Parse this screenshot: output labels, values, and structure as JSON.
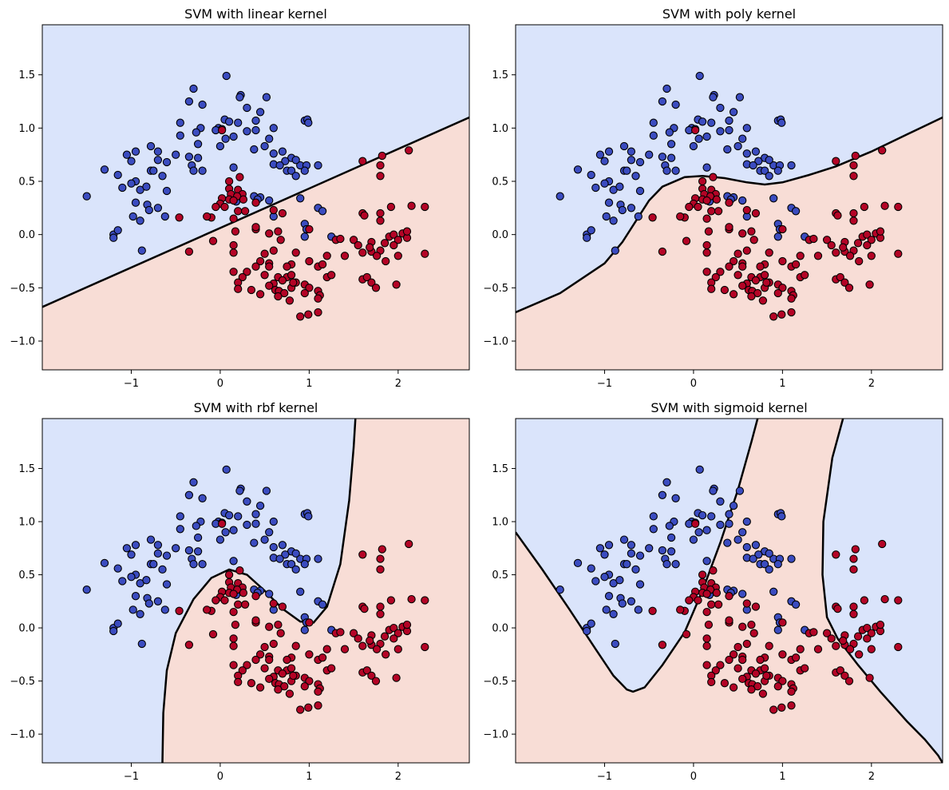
{
  "chart_data": {
    "type": "scatter",
    "colors": {
      "class0": "#3b4cc0",
      "class1": "#b40426",
      "region0": "#dae4fb",
      "region1": "#f8ddd6",
      "boundary": "#000000"
    },
    "xlim": [
      -2.0,
      2.8
    ],
    "ylim": [
      -1.27,
      1.97
    ],
    "xticks": [
      -1,
      0,
      1,
      2
    ],
    "xtick_labels": [
      "−1",
      "0",
      "1",
      "2"
    ],
    "yticks": [
      -1.0,
      -0.5,
      0.0,
      0.5,
      1.0,
      1.5
    ],
    "ytick_labels": [
      "−1.0",
      "−0.5",
      "0.0",
      "0.5",
      "1.0",
      "1.5"
    ],
    "points": {
      "class0": [
        [
          0.07,
          1.49
        ],
        [
          -0.3,
          1.37
        ],
        [
          0.23,
          1.31
        ],
        [
          0.52,
          1.29
        ],
        [
          0.22,
          1.29
        ],
        [
          -0.35,
          1.25
        ],
        [
          -0.2,
          1.22
        ],
        [
          0.3,
          1.19
        ],
        [
          0.45,
          1.15
        ],
        [
          -0.45,
          1.05
        ],
        [
          0.05,
          1.08
        ],
        [
          0.4,
          1.07
        ],
        [
          0.6,
          1.0
        ],
        [
          0.95,
          1.07
        ],
        [
          0.98,
          1.08
        ],
        [
          -0.22,
          1.0
        ],
        [
          -0.02,
          1.0
        ],
        [
          0.02,
          0.99
        ],
        [
          0.1,
          1.06
        ],
        [
          0.2,
          1.05
        ],
        [
          -0.05,
          0.98
        ],
        [
          -0.27,
          0.96
        ],
        [
          0.3,
          0.97
        ],
        [
          0.4,
          0.98
        ],
        [
          -0.45,
          0.93
        ],
        [
          0.15,
          0.92
        ],
        [
          0.06,
          0.9
        ],
        [
          -0.25,
          0.85
        ],
        [
          0.0,
          0.83
        ],
        [
          0.5,
          0.83
        ],
        [
          0.55,
          0.9
        ],
        [
          -0.78,
          0.83
        ],
        [
          -0.7,
          0.78
        ],
        [
          -0.95,
          0.78
        ],
        [
          -1.05,
          0.75
        ],
        [
          -1.0,
          0.69
        ],
        [
          -0.7,
          0.7
        ],
        [
          -0.6,
          0.68
        ],
        [
          -0.35,
          0.73
        ],
        [
          -0.25,
          0.72
        ],
        [
          -0.32,
          0.65
        ],
        [
          -0.3,
          0.6
        ],
        [
          -0.2,
          0.6
        ],
        [
          0.38,
          0.8
        ],
        [
          0.6,
          0.76
        ],
        [
          0.7,
          0.78
        ],
        [
          0.8,
          0.72
        ],
        [
          0.9,
          0.65
        ],
        [
          0.97,
          0.65
        ],
        [
          0.73,
          0.69
        ],
        [
          0.85,
          0.7
        ],
        [
          1.1,
          0.65
        ],
        [
          0.75,
          0.6
        ],
        [
          0.8,
          0.6
        ],
        [
          0.95,
          0.6
        ],
        [
          0.6,
          0.66
        ],
        [
          0.85,
          0.55
        ],
        [
          0.67,
          0.65
        ],
        [
          -1.3,
          0.61
        ],
        [
          -1.15,
          0.56
        ],
        [
          -0.78,
          0.6
        ],
        [
          -0.95,
          0.5
        ],
        [
          -1.0,
          0.48
        ],
        [
          -0.9,
          0.42
        ],
        [
          -0.75,
          0.6
        ],
        [
          -0.65,
          0.55
        ],
        [
          -0.5,
          0.75
        ],
        [
          -1.1,
          0.44
        ],
        [
          -0.83,
          0.45
        ],
        [
          -1.5,
          0.36
        ],
        [
          -0.95,
          0.3
        ],
        [
          -0.6,
          0.41
        ],
        [
          -0.82,
          0.28
        ],
        [
          -0.8,
          0.23
        ],
        [
          -0.7,
          0.25
        ],
        [
          -0.62,
          0.17
        ],
        [
          -0.9,
          0.13
        ],
        [
          -0.98,
          0.17
        ],
        [
          0.15,
          0.63
        ],
        [
          0.55,
          0.32
        ],
        [
          0.9,
          0.34
        ],
        [
          0.45,
          0.35
        ],
        [
          0.6,
          0.17
        ],
        [
          1.1,
          0.25
        ],
        [
          1.15,
          0.22
        ],
        [
          0.95,
          0.1
        ],
        [
          0.97,
          0.05
        ],
        [
          0.95,
          -0.02
        ],
        [
          1.25,
          -0.02
        ],
        [
          -1.2,
          0.0
        ],
        [
          -1.15,
          0.04
        ],
        [
          -1.2,
          -0.03
        ],
        [
          -0.88,
          -0.15
        ],
        [
          0.99,
          1.05
        ],
        [
          0.38,
          0.36
        ],
        [
          0.42,
          0.33
        ],
        [
          0.18,
          0.31
        ]
      ],
      "class1": [
        [
          0.02,
          0.98
        ],
        [
          1.6,
          0.69
        ],
        [
          1.82,
          0.74
        ],
        [
          2.12,
          0.79
        ],
        [
          1.8,
          0.65
        ],
        [
          1.8,
          0.55
        ],
        [
          0.1,
          0.5
        ],
        [
          0.22,
          0.54
        ],
        [
          0.1,
          0.43
        ],
        [
          0.2,
          0.42
        ],
        [
          0.25,
          0.38
        ],
        [
          0.12,
          0.38
        ],
        [
          0.02,
          0.34
        ],
        [
          0.19,
          0.36
        ],
        [
          0.1,
          0.33
        ],
        [
          0.15,
          0.32
        ],
        [
          0.26,
          0.33
        ],
        [
          0.4,
          0.3
        ],
        [
          0.0,
          0.29
        ],
        [
          -0.05,
          0.26
        ],
        [
          0.2,
          0.22
        ],
        [
          0.28,
          0.22
        ],
        [
          -0.1,
          0.16
        ],
        [
          -0.15,
          0.17
        ],
        [
          -0.46,
          0.16
        ],
        [
          0.05,
          0.26
        ],
        [
          0.6,
          0.23
        ],
        [
          0.15,
          0.15
        ],
        [
          0.7,
          0.2
        ],
        [
          1.6,
          0.2
        ],
        [
          1.62,
          0.18
        ],
        [
          1.8,
          0.2
        ],
        [
          1.8,
          0.13
        ],
        [
          2.15,
          0.27
        ],
        [
          2.3,
          0.26
        ],
        [
          1.92,
          0.26
        ],
        [
          0.17,
          0.03
        ],
        [
          0.4,
          0.05
        ],
        [
          0.4,
          0.07
        ],
        [
          0.55,
          0.01
        ],
        [
          0.65,
          0.03
        ],
        [
          0.68,
          -0.05
        ],
        [
          1.0,
          0.05
        ],
        [
          1.3,
          -0.05
        ],
        [
          1.35,
          -0.04
        ],
        [
          1.5,
          -0.05
        ],
        [
          1.55,
          -0.1
        ],
        [
          1.7,
          -0.07
        ],
        [
          1.85,
          -0.08
        ],
        [
          1.9,
          -0.02
        ],
        [
          1.95,
          0.0
        ],
        [
          2.0,
          -0.05
        ],
        [
          2.05,
          0.01
        ],
        [
          2.1,
          -0.03
        ],
        [
          2.1,
          0.03
        ],
        [
          -0.35,
          -0.16
        ],
        [
          -0.08,
          -0.06
        ],
        [
          0.15,
          -0.1
        ],
        [
          0.15,
          -0.17
        ],
        [
          0.5,
          -0.18
        ],
        [
          0.6,
          -0.15
        ],
        [
          0.85,
          -0.17
        ],
        [
          1.2,
          -0.2
        ],
        [
          1.4,
          -0.2
        ],
        [
          1.6,
          -0.17
        ],
        [
          1.7,
          -0.16
        ],
        [
          1.8,
          -0.15
        ],
        [
          1.95,
          -0.1
        ],
        [
          2.0,
          -0.2
        ],
        [
          1.76,
          -0.2
        ],
        [
          1.68,
          -0.12
        ],
        [
          1.86,
          -0.25
        ],
        [
          2.3,
          -0.18
        ],
        [
          0.45,
          -0.25
        ],
        [
          0.55,
          -0.27
        ],
        [
          0.8,
          -0.28
        ],
        [
          1.0,
          -0.25
        ],
        [
          1.1,
          -0.3
        ],
        [
          1.15,
          -0.28
        ],
        [
          0.4,
          -0.3
        ],
        [
          0.3,
          -0.35
        ],
        [
          0.5,
          -0.38
        ],
        [
          0.65,
          -0.4
        ],
        [
          0.75,
          -0.4
        ],
        [
          0.8,
          -0.38
        ],
        [
          0.7,
          -0.43
        ],
        [
          0.6,
          -0.46
        ],
        [
          0.85,
          -0.45
        ],
        [
          0.95,
          -0.47
        ],
        [
          1.0,
          -0.5
        ],
        [
          1.2,
          -0.4
        ],
        [
          1.25,
          -0.38
        ],
        [
          1.6,
          -0.42
        ],
        [
          1.65,
          -0.4
        ],
        [
          1.7,
          -0.45
        ],
        [
          1.75,
          -0.5
        ],
        [
          1.98,
          -0.47
        ],
        [
          0.25,
          -0.4
        ],
        [
          0.2,
          -0.45
        ],
        [
          0.2,
          -0.51
        ],
        [
          0.35,
          -0.52
        ],
        [
          0.55,
          -0.48
        ],
        [
          0.62,
          -0.52
        ],
        [
          0.66,
          -0.53
        ],
        [
          0.72,
          -0.55
        ],
        [
          0.8,
          -0.5
        ],
        [
          0.82,
          -0.45
        ],
        [
          0.95,
          -0.55
        ],
        [
          1.1,
          -0.53
        ],
        [
          1.12,
          -0.57
        ],
        [
          0.45,
          -0.56
        ],
        [
          0.65,
          -0.58
        ],
        [
          0.78,
          -0.62
        ],
        [
          1.1,
          -0.6
        ],
        [
          0.9,
          -0.77
        ],
        [
          0.99,
          -0.75
        ],
        [
          1.1,
          -0.73
        ],
        [
          0.15,
          -0.35
        ],
        [
          0.55,
          -0.3
        ],
        [
          0.75,
          -0.3
        ]
      ]
    },
    "subplots": [
      {
        "title": "SVM with linear kernel",
        "kernel": "linear",
        "boundaries": [
          [
            [
              -2.0,
              -0.68
            ],
            [
              2.8,
              1.1
            ]
          ]
        ]
      },
      {
        "title": "SVM with poly kernel",
        "kernel": "poly",
        "boundaries": [
          [
            [
              -2.0,
              -0.73
            ],
            [
              -1.5,
              -0.55
            ],
            [
              -1.0,
              -0.27
            ],
            [
              -0.8,
              -0.07
            ],
            [
              -0.5,
              0.32
            ],
            [
              -0.35,
              0.45
            ],
            [
              -0.1,
              0.54
            ],
            [
              0.1,
              0.55
            ],
            [
              0.35,
              0.53
            ],
            [
              0.6,
              0.49
            ],
            [
              0.8,
              0.47
            ],
            [
              1.0,
              0.49
            ],
            [
              1.3,
              0.56
            ],
            [
              1.6,
              0.64
            ],
            [
              2.0,
              0.78
            ],
            [
              2.4,
              0.94
            ],
            [
              2.8,
              1.1
            ]
          ]
        ]
      },
      {
        "title": "SVM with rbf kernel",
        "kernel": "rbf",
        "boundaries": [
          [
            [
              -0.65,
              -1.27
            ],
            [
              -0.64,
              -0.8
            ],
            [
              -0.6,
              -0.4
            ],
            [
              -0.5,
              -0.05
            ],
            [
              -0.3,
              0.27
            ],
            [
              -0.1,
              0.47
            ],
            [
              0.1,
              0.55
            ],
            [
              0.3,
              0.5
            ],
            [
              0.5,
              0.35
            ],
            [
              0.7,
              0.18
            ],
            [
              0.9,
              0.06
            ],
            [
              1.05,
              0.05
            ],
            [
              1.2,
              0.2
            ],
            [
              1.35,
              0.6
            ],
            [
              1.45,
              1.2
            ],
            [
              1.5,
              1.7
            ],
            [
              1.52,
              1.97
            ]
          ]
        ]
      },
      {
        "title": "SVM with sigmoid kernel",
        "kernel": "sigmoid",
        "boundaries": [
          [
            [
              -2.0,
              0.9
            ],
            [
              -1.7,
              0.55
            ],
            [
              -1.4,
              0.18
            ],
            [
              -1.1,
              -0.2
            ],
            [
              -0.9,
              -0.45
            ],
            [
              -0.75,
              -0.58
            ],
            [
              -0.68,
              -0.6
            ],
            [
              -0.55,
              -0.56
            ],
            [
              -0.35,
              -0.35
            ],
            [
              -0.1,
              -0.04
            ],
            [
              0.1,
              0.35
            ],
            [
              0.3,
              0.8
            ],
            [
              0.5,
              1.3
            ],
            [
              0.65,
              1.75
            ],
            [
              0.72,
              1.97
            ]
          ],
          [
            [
              1.68,
              1.97
            ],
            [
              1.56,
              1.6
            ],
            [
              1.46,
              1.0
            ],
            [
              1.45,
              0.5
            ],
            [
              1.5,
              0.1
            ],
            [
              1.62,
              -0.1
            ],
            [
              1.85,
              -0.35
            ],
            [
              2.1,
              -0.6
            ],
            [
              2.4,
              -0.88
            ],
            [
              2.6,
              -1.05
            ],
            [
              2.75,
              -1.2
            ],
            [
              2.8,
              -1.27
            ]
          ]
        ]
      }
    ]
  }
}
